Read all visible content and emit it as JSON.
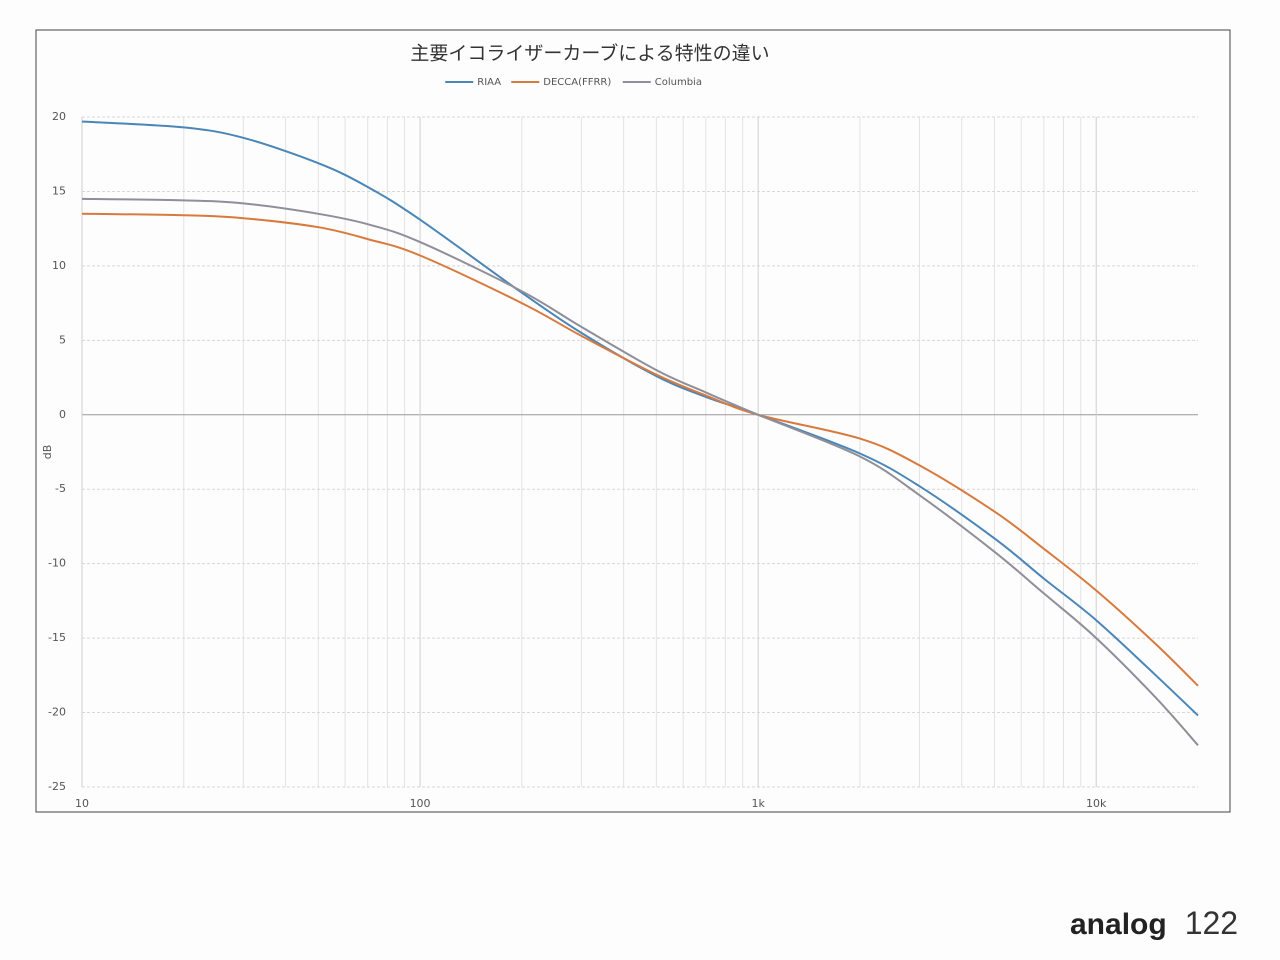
{
  "chart_data": {
    "type": "line",
    "title": "主要イコライザーカーブによる特性の違い",
    "y_label": "dB",
    "x": [
      10,
      20,
      30,
      50,
      70,
      100,
      200,
      300,
      500,
      700,
      1000,
      2000,
      3000,
      5000,
      7000,
      10000,
      15000,
      20000
    ],
    "series": [
      {
        "name": "RIAA",
        "color": "#4a86b8",
        "values": [
          19.7,
          19.3,
          18.6,
          16.9,
          15.3,
          13.1,
          8.2,
          5.5,
          2.6,
          1.2,
          0,
          -2.6,
          -4.8,
          -8.3,
          -11.0,
          -13.8,
          -17.5,
          -20.2
        ]
      },
      {
        "name": "DECCA(FFRR)",
        "color": "#d87a3e",
        "values": [
          13.5,
          13.4,
          13.2,
          12.6,
          11.8,
          10.7,
          7.5,
          5.3,
          2.7,
          1.3,
          0,
          -1.6,
          -3.4,
          -6.5,
          -9.0,
          -11.8,
          -15.4,
          -18.2
        ]
      },
      {
        "name": "Columbia",
        "color": "#8f8f9a",
        "values": [
          14.5,
          14.4,
          14.2,
          13.5,
          12.8,
          11.6,
          8.3,
          5.9,
          3.0,
          1.5,
          0,
          -2.8,
          -5.4,
          -9.2,
          -12.0,
          -15.0,
          -19.0,
          -22.2
        ]
      }
    ],
    "xlim": [
      10,
      20000
    ],
    "x_log": true,
    "xticks": [
      10,
      100,
      {
        "value": 1000,
        "label": "1k"
      },
      {
        "value": 10000,
        "label": "10k"
      }
    ],
    "ylim": [
      -25,
      20
    ],
    "yticks": [
      -25,
      -20,
      -15,
      -10,
      -5,
      0,
      5,
      10,
      15,
      20
    ],
    "grid": true,
    "minor_grid": true,
    "legend": "top"
  },
  "footer": {
    "brand": "analog",
    "page_number": 122
  }
}
